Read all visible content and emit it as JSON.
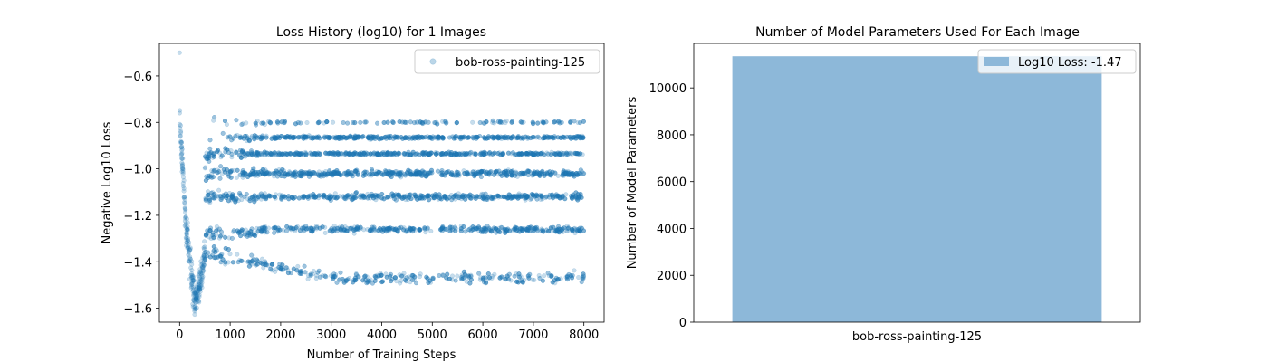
{
  "chart_data": [
    {
      "type": "scatter",
      "title": "Loss History (log10) for 1 Images",
      "xlabel": "Number of Training Steps",
      "ylabel": "Negative Log10 Loss",
      "xlim": [
        -400,
        8400
      ],
      "ylim": [
        -1.66,
        -0.46
      ],
      "xticks": [
        0,
        1000,
        2000,
        3000,
        4000,
        5000,
        6000,
        7000,
        8000
      ],
      "xtick_labels": [
        "0",
        "1000",
        "2000",
        "3000",
        "4000",
        "5000",
        "6000",
        "7000",
        "8000"
      ],
      "yticks": [
        -0.6,
        -0.8,
        -1.0,
        -1.2,
        -1.4,
        -1.6
      ],
      "ytick_labels": [
        "−0.6",
        "−0.8",
        "−1.0",
        "−1.2",
        "−1.4",
        "−1.6"
      ],
      "legend": {
        "position": "top-right",
        "entries": [
          "bob-ross-painting-125"
        ]
      },
      "grid": false,
      "series": [
        {
          "name": "bob-ross-painting-125",
          "color": "#1f77b4",
          "alpha": 0.25,
          "x_range": [
            0,
            8000
          ],
          "initial_value": -0.5,
          "minimum": -1.63,
          "minimum_at_step": 300,
          "plateau_levels": [
            -0.8,
            -0.865,
            -0.935,
            -1.02,
            -1.12,
            -1.26,
            -1.47
          ],
          "plateau_level_weights": [
            0.04,
            0.16,
            0.16,
            0.2,
            0.18,
            0.15,
            0.11
          ]
        }
      ]
    },
    {
      "type": "bar",
      "title": "Number of Model Parameters Used For Each Image",
      "xlabel": "",
      "ylabel": "Number of Model Parameters",
      "categories": [
        "bob-ross-painting-125"
      ],
      "values": [
        11350
      ],
      "ylim": [
        0,
        11900
      ],
      "yticks": [
        0,
        2000,
        4000,
        6000,
        8000,
        10000
      ],
      "ytick_labels": [
        "0",
        "2000",
        "4000",
        "6000",
        "8000",
        "10000"
      ],
      "legend": {
        "position": "top-right",
        "entries": [
          "Log10 Loss: -1.47"
        ]
      },
      "grid": false,
      "color": "#8db8d9"
    }
  ]
}
